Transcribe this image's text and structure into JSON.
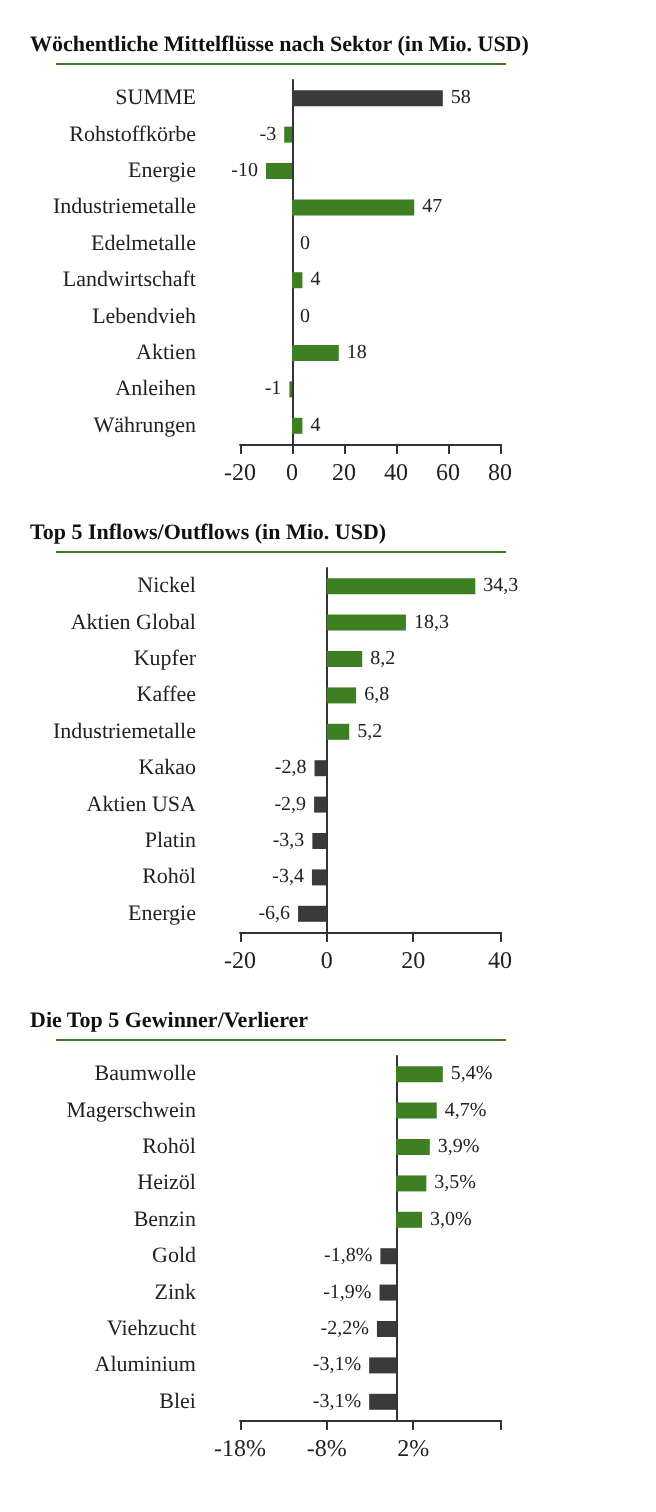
{
  "chart_data": [
    {
      "type": "bar",
      "orientation": "horizontal",
      "title": "Wöchentliche Mittelflüsse nach Sektor (in Mio. USD)",
      "categories": [
        "SUMME",
        "Rohstoffkörbe",
        "Energie",
        "Industriemetalle",
        "Edelmetalle",
        "Landwirtschaft",
        "Lebendvieh",
        "Aktien",
        "Anleihen",
        "Währungen"
      ],
      "values": [
        58,
        -3,
        -10,
        47,
        0,
        4,
        0,
        18,
        -1,
        4
      ],
      "colors": [
        "#3a3a3a",
        "#3f7f24",
        "#3f7f24",
        "#3f7f24",
        "#3f7f24",
        "#3f7f24",
        "#3f7f24",
        "#3f7f24",
        "#3f7f24",
        "#3f7f24"
      ],
      "value_labels": [
        "58",
        "-3",
        "-10",
        "47",
        "0",
        "4",
        "0",
        "18",
        "-1",
        "4"
      ],
      "xlim": [
        -20,
        80
      ],
      "xticks": [
        -20,
        0,
        20,
        40,
        60,
        80
      ]
    },
    {
      "type": "bar",
      "orientation": "horizontal",
      "title": "Top 5 Inflows/Outflows (in Mio. USD)",
      "categories": [
        "Nickel",
        "Aktien Global",
        "Kupfer",
        "Kaffee",
        "Industriemetalle",
        "Kakao",
        "Aktien USA",
        "Platin",
        "Rohöl",
        "Energie"
      ],
      "values": [
        34.3,
        18.3,
        8.2,
        6.8,
        5.2,
        -2.8,
        -2.9,
        -3.3,
        -3.4,
        -6.6
      ],
      "colors": [
        "#3f7f24",
        "#3f7f24",
        "#3f7f24",
        "#3f7f24",
        "#3f7f24",
        "#3a3a3a",
        "#3a3a3a",
        "#3a3a3a",
        "#3a3a3a",
        "#3a3a3a"
      ],
      "value_labels": [
        "34,3",
        "18,3",
        "8,2",
        "6,8",
        "5,2",
        "-2,8",
        "-2,9",
        "-3,3",
        "-3,4",
        "-6,6"
      ],
      "xlim": [
        -20,
        40
      ],
      "xticks": [
        -20,
        0,
        20,
        40
      ]
    },
    {
      "type": "bar",
      "orientation": "horizontal",
      "title": "Die Top 5 Gewinner/Verlierer",
      "categories": [
        "Baumwolle",
        "Magerschwein",
        "Rohöl",
        "Heizöl",
        "Benzin",
        "Gold",
        "Zink",
        "Viehzucht",
        "Aluminium",
        "Blei"
      ],
      "values": [
        5.4,
        4.7,
        3.9,
        3.5,
        3.0,
        -1.8,
        -1.9,
        -2.2,
        -3.1,
        -3.1
      ],
      "colors": [
        "#3f7f24",
        "#3f7f24",
        "#3f7f24",
        "#3f7f24",
        "#3f7f24",
        "#3a3a3a",
        "#3a3a3a",
        "#3a3a3a",
        "#3a3a3a",
        "#3a3a3a"
      ],
      "value_labels": [
        "5,4%",
        "4,7%",
        "3,9%",
        "3,5%",
        "3,0%",
        "-1,8%",
        "-1,9%",
        "-2,2%",
        "-3,1%",
        "-3,1%"
      ],
      "xlim": [
        -18,
        12
      ],
      "xticks": [
        {
          "value": -18,
          "label": "-18%"
        },
        {
          "value": -8,
          "label": "-8%"
        },
        {
          "value": 2,
          "label": "2%"
        },
        {
          "value": 12,
          "label": null
        }
      ]
    }
  ]
}
